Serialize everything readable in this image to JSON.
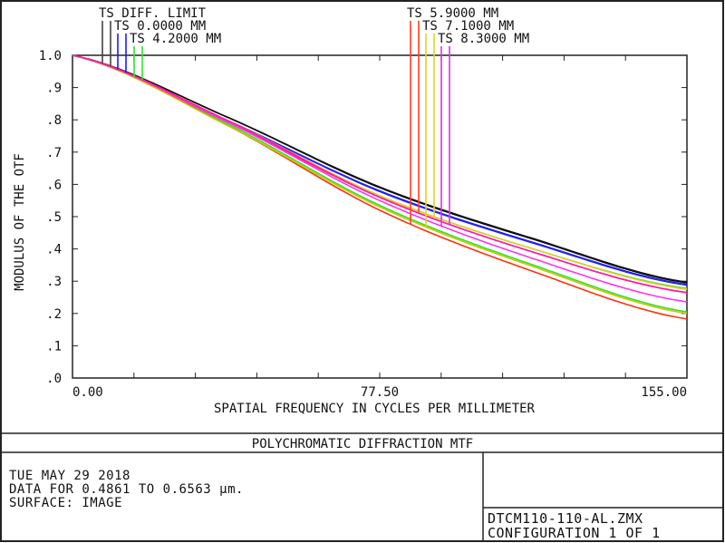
{
  "chart_data": {
    "type": "line",
    "title": "POLYCHROMATIC DIFFRACTION MTF",
    "xlabel": "SPATIAL FREQUENCY IN CYCLES PER MILLIMETER",
    "ylabel": "MODULUS OF THE OTF",
    "xlim": [
      0,
      155
    ],
    "ylim": [
      0,
      1
    ],
    "x_tick_labels": [
      "0.00",
      "77.50",
      "155.00"
    ],
    "y_tick_labels": [
      "1.0",
      ".9",
      ".8",
      ".7",
      ".6",
      ".5",
      ".4",
      ".3",
      ".2",
      ".1",
      ".0"
    ],
    "grid": false,
    "x": [
      0,
      38.75,
      77.5,
      116.25,
      155
    ],
    "legend": [
      {
        "label": "TS DIFF. LIMIT",
        "color": "#444444"
      },
      {
        "label": "TS 0.0000 MM",
        "color": "#1a1aff"
      },
      {
        "label": "TS 4.2000 MM",
        "color": "#33e033"
      },
      {
        "label": "TS 5.9000 MM",
        "color": "#ff4020"
      },
      {
        "label": "TS 7.1000 MM",
        "color": "#d8d820"
      },
      {
        "label": "TS 8.3000 MM",
        "color": "#e030e8"
      }
    ],
    "series": [
      {
        "field": 0,
        "color": "#000000",
        "values": [
          1,
          0.81,
          0.59,
          0.43,
          0.295
        ]
      },
      {
        "field": 0,
        "color": "#111111",
        "values": [
          1,
          0.81,
          0.592,
          0.432,
          0.297
        ]
      },
      {
        "field": 1,
        "color": "#1a1aff",
        "values": [
          1,
          0.8,
          0.58,
          0.42,
          0.29
        ]
      },
      {
        "field": 1,
        "color": "#2222ee",
        "values": [
          1,
          0.8,
          0.578,
          0.418,
          0.288
        ]
      },
      {
        "field": 2,
        "color": "#33e033",
        "values": [
          1,
          0.79,
          0.535,
          0.35,
          0.205
        ]
      },
      {
        "field": 2,
        "color": "#66dd33",
        "values": [
          1,
          0.8,
          0.565,
          0.4,
          0.278
        ]
      },
      {
        "field": 3,
        "color": "#ff3010",
        "values": [
          1,
          0.785,
          0.52,
          0.33,
          0.183
        ]
      },
      {
        "field": 3,
        "color": "#ff2080",
        "values": [
          1,
          0.795,
          0.56,
          0.39,
          0.265
        ]
      },
      {
        "field": 4,
        "color": "#c8c800",
        "values": [
          1,
          0.785,
          0.53,
          0.345,
          0.2
        ]
      },
      {
        "field": 4,
        "color": "#ddcc33",
        "values": [
          1,
          0.8,
          0.565,
          0.4,
          0.275
        ]
      },
      {
        "field": 5,
        "color": "#ff33ee",
        "values": [
          1,
          0.795,
          0.55,
          0.37,
          0.236
        ]
      },
      {
        "field": 5,
        "color": "#ff1aa0",
        "values": [
          1,
          0.8,
          0.56,
          0.39,
          0.265
        ]
      }
    ]
  },
  "info": {
    "date": "TUE MAY 29 2018",
    "data_range": "DATA FOR 0.4861 TO 0.6563 µm.",
    "surface": "SURFACE: IMAGE",
    "file": "DTCM110-110-AL.ZMX",
    "configuration": "CONFIGURATION 1 OF 1"
  }
}
